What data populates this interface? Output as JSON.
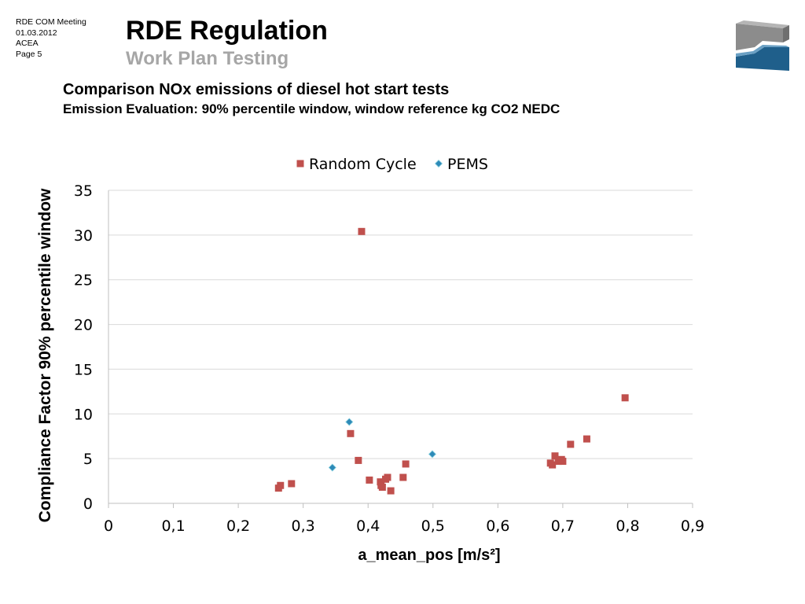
{
  "slide": {
    "meta": [
      "RDE  COM Meeting",
      "01.03.2012",
      "ACEA",
      "Page 5"
    ],
    "title": "RDE Regulation",
    "subtitle": "Work Plan Testing",
    "heading": "Comparison NOx emissions of diesel hot start tests",
    "subheading": "Emission Evaluation: 90% percentile window, window  reference kg CO2 NEDC"
  },
  "colors": {
    "random_cycle": "#c0504d",
    "pems": "#2e8ab8",
    "grid": "#d9d9d9",
    "logo_gray": "#8c8c8c",
    "logo_blue": "#1f5f8b"
  },
  "icons": {
    "logo": "company-logo-icon"
  },
  "chart_data": {
    "type": "scatter",
    "xlabel": "a_mean_pos [m/s²]",
    "ylabel": "Compliance Factor 90% percentile window",
    "xlim": [
      0,
      0.9
    ],
    "ylim": [
      0,
      35
    ],
    "xticks": [
      "0",
      "0,1",
      "0,2",
      "0,3",
      "0,4",
      "0,5",
      "0,6",
      "0,7",
      "0,8",
      "0,9"
    ],
    "yticks": [
      "0",
      "5",
      "10",
      "15",
      "20",
      "25",
      "30",
      "35"
    ],
    "grid": true,
    "legend_position": "top",
    "series": [
      {
        "name": "Random Cycle",
        "marker": "square",
        "points": [
          [
            0.262,
            1.7
          ],
          [
            0.265,
            2.0
          ],
          [
            0.282,
            2.2
          ],
          [
            0.373,
            7.8
          ],
          [
            0.385,
            4.8
          ],
          [
            0.39,
            30.4
          ],
          [
            0.402,
            2.6
          ],
          [
            0.419,
            2.4
          ],
          [
            0.42,
            2.0
          ],
          [
            0.422,
            1.8
          ],
          [
            0.427,
            2.7
          ],
          [
            0.43,
            2.9
          ],
          [
            0.435,
            1.4
          ],
          [
            0.454,
            2.9
          ],
          [
            0.458,
            4.4
          ],
          [
            0.681,
            4.5
          ],
          [
            0.684,
            4.3
          ],
          [
            0.688,
            5.3
          ],
          [
            0.693,
            4.7
          ],
          [
            0.698,
            4.9
          ],
          [
            0.7,
            4.7
          ],
          [
            0.712,
            6.6
          ],
          [
            0.737,
            7.2
          ],
          [
            0.796,
            11.8
          ]
        ]
      },
      {
        "name": "PEMS",
        "marker": "diamond",
        "points": [
          [
            0.345,
            4.0
          ],
          [
            0.371,
            9.1
          ],
          [
            0.499,
            5.5
          ]
        ]
      }
    ]
  }
}
